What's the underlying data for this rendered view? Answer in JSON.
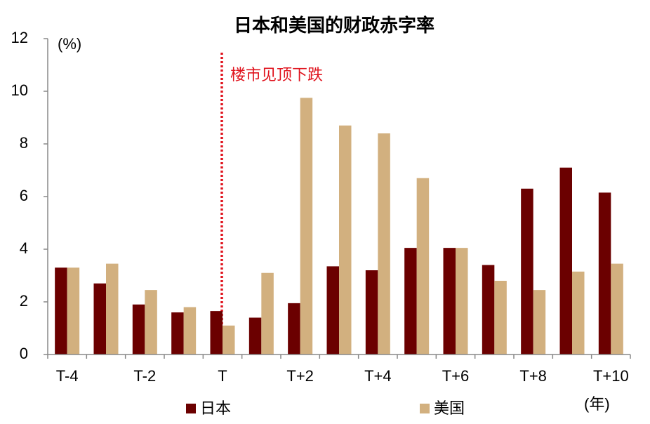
{
  "chart_data": {
    "type": "bar",
    "title": "日本和美国的财政赤字率",
    "y_unit_label": "(%)",
    "x_unit_label": "(年)",
    "annotation": "楼市见顶下跌",
    "categories": [
      "T-4",
      null,
      "T-2",
      null,
      "T",
      null,
      "T+2",
      null,
      "T+4",
      null,
      "T+6",
      null,
      "T+8",
      null,
      "T+10"
    ],
    "series": [
      {
        "name": "日本",
        "color": "#6b0000",
        "values": [
          3.3,
          2.7,
          1.9,
          1.6,
          1.65,
          1.4,
          1.95,
          3.35,
          3.2,
          4.05,
          4.05,
          3.4,
          6.3,
          7.1,
          6.15
        ]
      },
      {
        "name": "美国",
        "color": "#d2b07f",
        "values": [
          3.3,
          3.45,
          2.45,
          1.8,
          1.1,
          3.1,
          9.75,
          8.7,
          8.4,
          6.7,
          4.05,
          2.8,
          2.45,
          3.15,
          3.45
        ]
      }
    ],
    "ylim": [
      0,
      12
    ],
    "yticks": [
      0,
      2,
      4,
      6,
      8,
      10,
      12
    ],
    "grid": false
  }
}
